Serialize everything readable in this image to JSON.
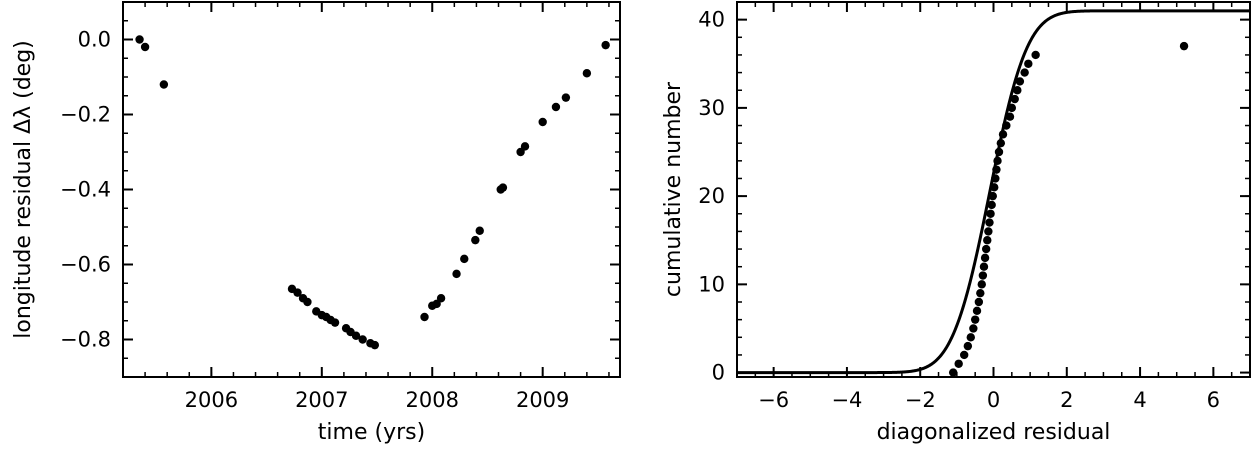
{
  "chart_data": [
    {
      "type": "scatter",
      "title": "",
      "xlabel": "time (yrs)",
      "ylabel": "longitude residual Δλ (deg)",
      "xlim": [
        2005.2,
        2009.7
      ],
      "ylim": [
        -0.9,
        0.1
      ],
      "xticks": [
        2006,
        2007,
        2008,
        2009
      ],
      "xtick_labels": [
        "2006",
        "2007",
        "2008",
        "2009"
      ],
      "yticks": [
        0.0,
        -0.2,
        -0.4,
        -0.6,
        -0.8
      ],
      "ytick_labels": [
        "0.0",
        "−0.2",
        "−0.4",
        "−0.6",
        "−0.8"
      ],
      "grid": false,
      "series": [
        {
          "points": [
            [
              2005.35,
              0.0
            ],
            [
              2005.4,
              -0.02
            ],
            [
              2005.57,
              -0.12
            ],
            [
              2006.73,
              -0.665
            ],
            [
              2006.78,
              -0.675
            ],
            [
              2006.83,
              -0.69
            ],
            [
              2006.87,
              -0.7
            ],
            [
              2006.95,
              -0.725
            ],
            [
              2007.0,
              -0.735
            ],
            [
              2007.04,
              -0.74
            ],
            [
              2007.08,
              -0.748
            ],
            [
              2007.12,
              -0.755
            ],
            [
              2007.22,
              -0.77
            ],
            [
              2007.26,
              -0.78
            ],
            [
              2007.31,
              -0.79
            ],
            [
              2007.37,
              -0.8
            ],
            [
              2007.44,
              -0.81
            ],
            [
              2007.48,
              -0.815
            ],
            [
              2007.93,
              -0.74
            ],
            [
              2008.0,
              -0.71
            ],
            [
              2008.04,
              -0.705
            ],
            [
              2008.08,
              -0.69
            ],
            [
              2008.22,
              -0.625
            ],
            [
              2008.29,
              -0.585
            ],
            [
              2008.39,
              -0.535
            ],
            [
              2008.43,
              -0.51
            ],
            [
              2008.62,
              -0.4
            ],
            [
              2008.64,
              -0.395
            ],
            [
              2008.8,
              -0.3
            ],
            [
              2008.84,
              -0.285
            ],
            [
              2009.0,
              -0.22
            ],
            [
              2009.12,
              -0.18
            ],
            [
              2009.21,
              -0.155
            ],
            [
              2009.4,
              -0.09
            ],
            [
              2009.57,
              -0.015
            ]
          ]
        }
      ]
    },
    {
      "type": "line",
      "title": "",
      "xlabel": "diagonalized residual",
      "ylabel": "cumulative number",
      "xlim": [
        -7,
        7
      ],
      "ylim": [
        -0.5,
        42
      ],
      "xticks": [
        -6,
        -4,
        -2,
        0,
        2,
        4,
        6
      ],
      "xtick_labels": [
        "−6",
        "−4",
        "−2",
        "0",
        "2",
        "4",
        "6"
      ],
      "yticks": [
        0,
        10,
        20,
        30,
        40
      ],
      "ytick_labels": [
        "0",
        "10",
        "20",
        "30",
        "40"
      ],
      "grid": false,
      "curve": {
        "kind": "normal_cdf",
        "mean": -0.1,
        "sigma": 0.8,
        "amplitude": 41
      },
      "points": [
        [
          -1.1,
          0
        ],
        [
          -0.95,
          1
        ],
        [
          -0.8,
          2
        ],
        [
          -0.7,
          3
        ],
        [
          -0.62,
          4
        ],
        [
          -0.55,
          5
        ],
        [
          -0.5,
          6
        ],
        [
          -0.45,
          7
        ],
        [
          -0.4,
          8
        ],
        [
          -0.36,
          9
        ],
        [
          -0.32,
          10
        ],
        [
          -0.29,
          11
        ],
        [
          -0.26,
          12
        ],
        [
          -0.23,
          13
        ],
        [
          -0.2,
          14
        ],
        [
          -0.17,
          15
        ],
        [
          -0.14,
          16
        ],
        [
          -0.11,
          17
        ],
        [
          -0.08,
          18
        ],
        [
          -0.05,
          19
        ],
        [
          -0.02,
          20
        ],
        [
          0.02,
          21
        ],
        [
          0.05,
          22
        ],
        [
          0.08,
          23
        ],
        [
          0.11,
          24
        ],
        [
          0.15,
          25
        ],
        [
          0.2,
          26
        ],
        [
          0.26,
          27
        ],
        [
          0.35,
          28
        ],
        [
          0.45,
          29
        ],
        [
          0.5,
          30
        ],
        [
          0.58,
          31
        ],
        [
          0.65,
          32
        ],
        [
          0.72,
          33
        ],
        [
          0.85,
          34
        ],
        [
          0.95,
          35
        ],
        [
          1.15,
          36
        ],
        [
          5.2,
          37
        ]
      ]
    }
  ]
}
